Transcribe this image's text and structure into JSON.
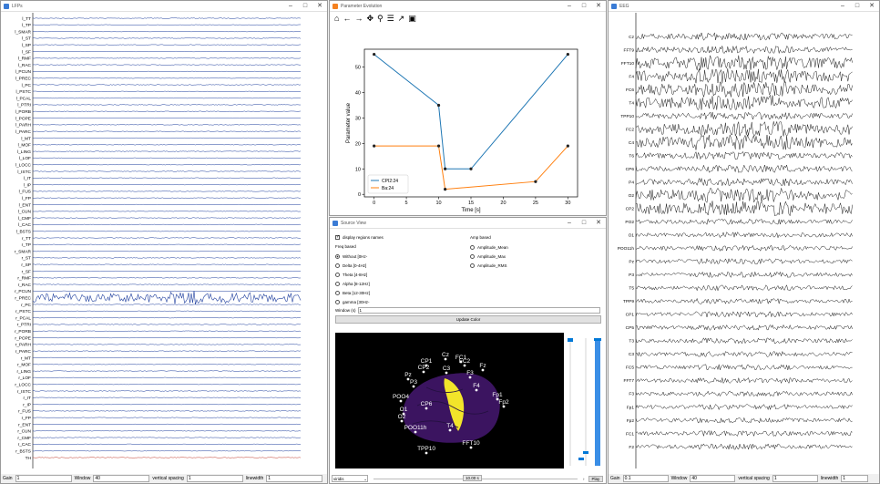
{
  "left_window": {
    "title": "LFPs",
    "channels": [
      "l_TT",
      "l_TP",
      "l_SMAR",
      "l_ST",
      "l_SP",
      "l_SF",
      "l_RMF",
      "l_RAC",
      "l_PCUN",
      "l_PREC",
      "l_PC",
      "l_PSTC",
      "l_PCAL",
      "l_PTRI",
      "l_PORB",
      "l_POPE",
      "l_PARH",
      "l_PARC",
      "l_MT",
      "l_MOF",
      "l_LING",
      "l_LOF",
      "l_LOCC",
      "l_ISTC",
      "l_IT",
      "l_IP",
      "l_FUS",
      "l_FP",
      "l_ENT",
      "l_CUN",
      "l_CMF",
      "l_CAC",
      "l_BSTS",
      "r_TT",
      "r_TP",
      "r_SMAR",
      "r_ST",
      "r_SP",
      "r_SF",
      "r_RMF",
      "r_RAC",
      "r_PCUN",
      "r_PREC",
      "r_PC",
      "r_PSTC",
      "r_PCAL",
      "r_PTRI",
      "r_PORB",
      "r_POPE",
      "r_PARH",
      "r_PARC",
      "r_MT",
      "r_MOF",
      "r_LING",
      "r_LOF",
      "r_LOCC",
      "r_ISTC",
      "r_IT",
      "r_IP",
      "r_FUS",
      "r_FP",
      "r_ENT",
      "r_CUN",
      "r_CMF",
      "r_CAC",
      "r_BSTS",
      "TH"
    ],
    "gain_label": "Gain",
    "gain_value": "1",
    "window_label": "Window",
    "window_value": "40",
    "vspacing_label": "vertical spacing",
    "vspacing_value": "1",
    "linewidth_label": "linewidth",
    "linewidth_value": "1"
  },
  "param_window": {
    "title": "Parameter Evolution",
    "toolbar_icons": [
      "home-icon",
      "back-icon",
      "forward-icon",
      "pan-icon",
      "zoom-icon",
      "configure-icon",
      "edit-curve-icon",
      "save-icon"
    ]
  },
  "chart_data": {
    "type": "line",
    "xlabel": "Time [s]",
    "ylabel": "Parameter value",
    "xlim": [
      -1.5,
      31.5
    ],
    "ylim": [
      -1,
      57
    ],
    "xticks": [
      0,
      5,
      10,
      15,
      20,
      25,
      30
    ],
    "yticks": [
      0,
      10,
      20,
      30,
      40,
      50
    ],
    "legend_position": "bottom-left",
    "series": [
      {
        "name": "CPI2:24",
        "color": "#1f77b4",
        "x": [
          0,
          10,
          11,
          15,
          30
        ],
        "y": [
          55,
          35,
          10,
          10,
          55
        ]
      },
      {
        "name": "Ba:24",
        "color": "#ff7f0e",
        "x": [
          0,
          10,
          11,
          25,
          30
        ],
        "y": [
          19,
          19,
          2,
          5,
          19
        ]
      }
    ]
  },
  "source_window": {
    "title": "Source View",
    "display_regions_label": "display regions names",
    "freq_based_label": "Freq based",
    "freq_options": [
      "Without [0Hz-",
      "Delta [0-4Hz]",
      "Theta [4-8Hz]",
      "Alpha [8-12Hz]",
      "Beta [12-30Hz]",
      "gamma [30Hz-"
    ],
    "amp_based_label": "Amp based",
    "amp_options": [
      "Amplitude_Mean",
      "Amplitude_Max",
      "Amplitude_RMS"
    ],
    "window_label": "Window (s)",
    "window_value": "1",
    "update_button": "Update Color",
    "electrodes": [
      "Cz",
      "FC1",
      "FC2",
      "CP1",
      "CP2",
      "C3",
      "F3",
      "Fz",
      "Pz",
      "P3",
      "F4",
      "Fp1",
      "Fp2",
      "POO4",
      "CP6",
      "O1",
      "O2",
      "POO11h",
      "T4",
      "TPP10",
      "FFT10"
    ],
    "colormap": "viridis",
    "time_value": "10.00 s",
    "play_button": "Play"
  },
  "right_window": {
    "title": "EEG",
    "channels": [
      "Cz",
      "FFT9",
      "FFT10",
      "F4",
      "FC6",
      "T4",
      "TPP10",
      "FC2",
      "C4",
      "T6",
      "CP6",
      "P4",
      "O2",
      "CP2",
      "PO2",
      "O1",
      "POO11h",
      "Pz",
      "P3",
      "T5",
      "TPP9",
      "CP1",
      "CP5",
      "T3",
      "C3",
      "FC5",
      "FFT7",
      "F3",
      "Fp1",
      "Fp2",
      "FC1",
      "F2"
    ],
    "gain_label": "Gain",
    "gain_value": "0.1",
    "window_label": "Window",
    "window_value": "40",
    "vspacing_label": "vertical spacing",
    "vspacing_value": "1",
    "linewidth_label": "linewidth",
    "linewidth_value": "1"
  }
}
